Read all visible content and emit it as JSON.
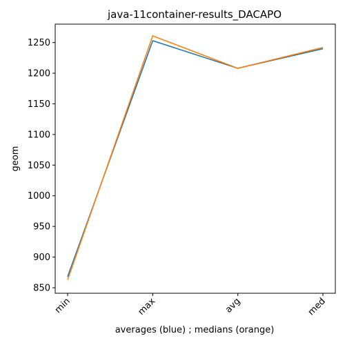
{
  "chart_data": {
    "type": "line",
    "title": "java-11container-results_DACAPO",
    "xlabel": "averages (blue) ; medians (orange)",
    "ylabel": "geom",
    "categories": [
      "min",
      "max",
      "avg",
      "med"
    ],
    "series": [
      {
        "color": "#1f77b4",
        "values": [
          868,
          1253,
          1208,
          1240
        ]
      },
      {
        "color": "#ff7f0e",
        "values": [
          863,
          1261,
          1208,
          1242
        ]
      }
    ],
    "ylim": [
      841,
      1280
    ],
    "yticks": [
      850,
      900,
      950,
      1000,
      1050,
      1100,
      1150,
      1200,
      1250
    ],
    "grid": false
  }
}
